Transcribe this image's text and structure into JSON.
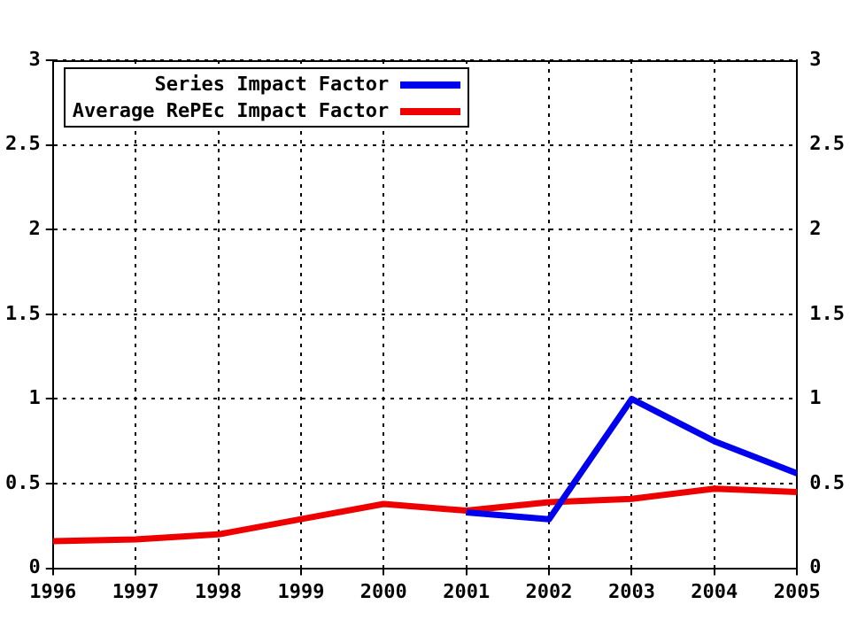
{
  "chart_data": {
    "type": "line",
    "x": [
      1996,
      1997,
      1998,
      1999,
      2000,
      2001,
      2002,
      2003,
      2004,
      2005
    ],
    "series": [
      {
        "name": "Series Impact Factor",
        "color": "#0000ee",
        "values": [
          null,
          null,
          null,
          null,
          null,
          0.33,
          0.29,
          1.0,
          0.75,
          0.56
        ]
      },
      {
        "name": "Average RePEc Impact Factor",
        "color": "#ee0000",
        "values": [
          0.16,
          0.17,
          0.2,
          0.29,
          0.38,
          0.34,
          0.39,
          0.41,
          0.47,
          0.45
        ]
      }
    ],
    "xlim": [
      1996,
      2005
    ],
    "xticks": [
      1996,
      1997,
      1998,
      1999,
      2000,
      2001,
      2002,
      2003,
      2004,
      2005
    ],
    "ylim": [
      0,
      3
    ],
    "yticks": [
      0,
      0.5,
      1,
      1.5,
      2,
      2.5,
      3
    ],
    "y2lim": [
      0,
      3
    ],
    "y2ticks": [
      0,
      0.5,
      1,
      1.5,
      2,
      2.5,
      3
    ],
    "grid": true,
    "legend": "top left",
    "marker": "none",
    "line_style": "solid"
  }
}
